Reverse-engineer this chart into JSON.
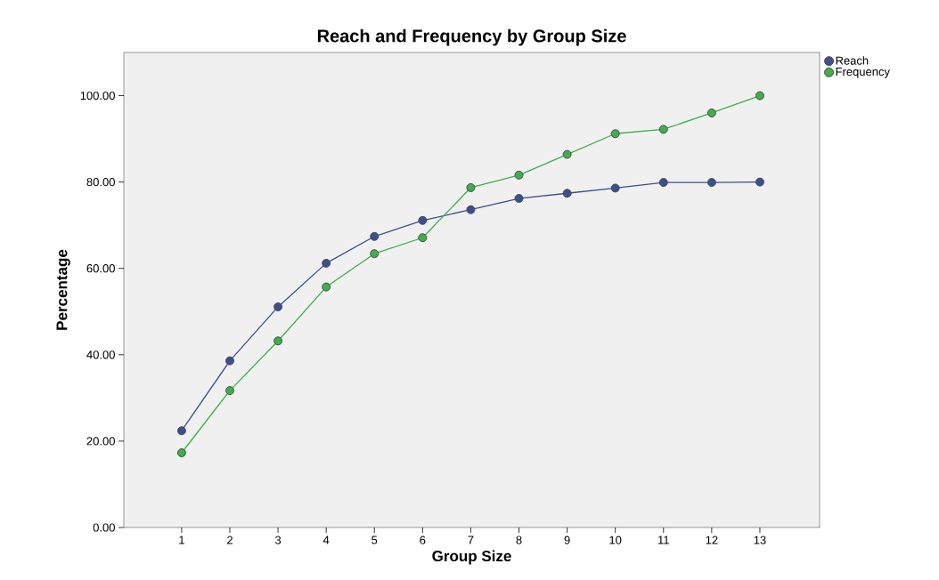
{
  "chart_data": {
    "type": "line",
    "title": "Reach and Frequency by Group Size",
    "xlabel": "Group Size",
    "ylabel": "Percentage",
    "categories": [
      "1",
      "2",
      "3",
      "4",
      "5",
      "6",
      "7",
      "8",
      "9",
      "10",
      "11",
      "12",
      "13"
    ],
    "series": [
      {
        "name": "Reach",
        "color": "#3c4f8e",
        "values": [
          22.4,
          38.6,
          51.1,
          61.2,
          67.4,
          71.1,
          73.6,
          76.2,
          77.4,
          78.6,
          79.9,
          79.9,
          80.0
        ]
      },
      {
        "name": "Frequency",
        "color": "#3fae4c",
        "values": [
          17.3,
          31.7,
          43.2,
          55.7,
          63.4,
          67.1,
          78.7,
          81.6,
          86.4,
          91.2,
          92.2,
          96.0,
          100.0
        ]
      }
    ],
    "ylim": [
      0,
      110
    ],
    "yticks": [
      {
        "value": 0,
        "label": "0.00"
      },
      {
        "value": 20,
        "label": "20.00"
      },
      {
        "value": 40,
        "label": "40.00"
      },
      {
        "value": 60,
        "label": "60.00"
      },
      {
        "value": 80,
        "label": "80.00"
      },
      {
        "value": 100,
        "label": "100.00"
      }
    ],
    "marker": "circle",
    "line_style": "solid",
    "legend": "top right",
    "grid": false
  }
}
